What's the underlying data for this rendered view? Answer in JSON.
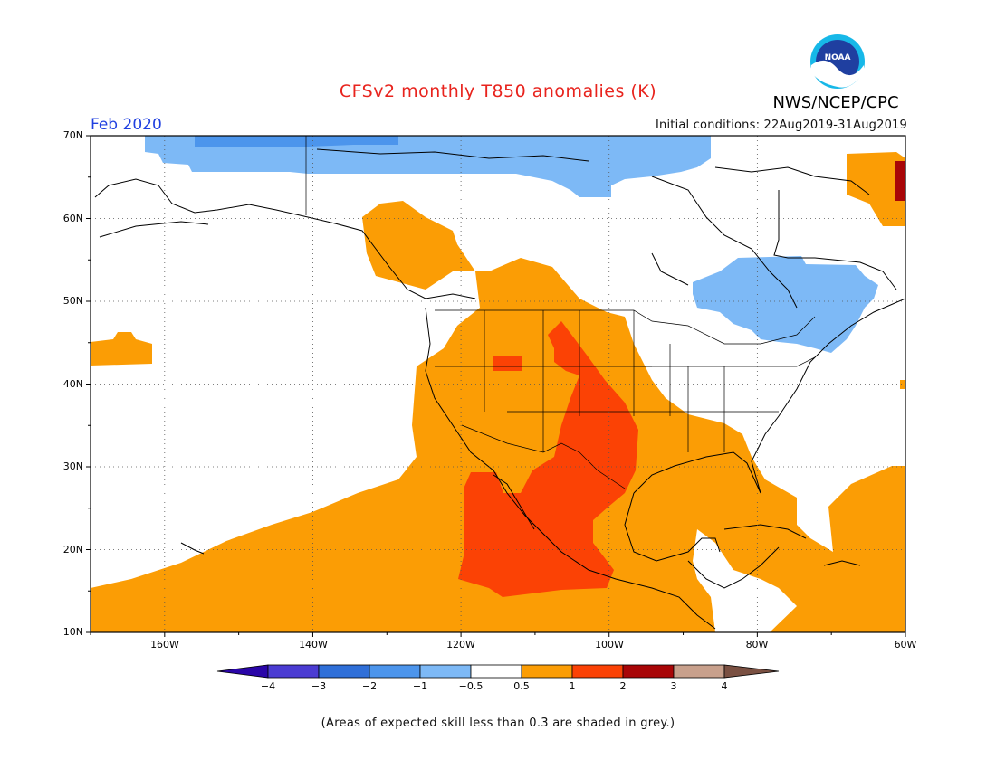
{
  "header": {
    "title": "CFSv2 monthly T850 anomalies (K)",
    "agency": "NWS/NCEP/CPC",
    "logo_text": "NOAA",
    "valid_month": "Feb 2020",
    "initial_conditions": "Initial conditions: 22Aug2019-31Aug2019"
  },
  "map": {
    "lat_labels": [
      "70N",
      "60N",
      "50N",
      "40N",
      "30N",
      "20N",
      "10N"
    ],
    "lon_labels": [
      "160W",
      "140W",
      "120W",
      "100W",
      "80W",
      "60W"
    ],
    "extent": {
      "lon_min": -170,
      "lon_max": -60,
      "lat_min": 10,
      "lat_max": 70
    },
    "grid_lines": "dotted",
    "regions": [
      {
        "name": "arctic-cold",
        "category": "-2 to -1"
      },
      {
        "name": "arctic-cool",
        "category": "-1 to -0.5"
      },
      {
        "name": "great-lakes-cool",
        "category": "-1 to -0.5"
      },
      {
        "name": "west-warm",
        "category": "0.5 to 1"
      },
      {
        "name": "mexico-plains-hot",
        "category": "1 to 2"
      },
      {
        "name": "north-atlantic-hot",
        "category": "2 to 3"
      }
    ]
  },
  "colorbar": {
    "ticks": [
      "−4",
      "−3",
      "−2",
      "−1",
      "−0.5",
      "0.5",
      "1",
      "2",
      "3",
      "4"
    ],
    "colors": [
      "#2a05a8",
      "#4b3cd2",
      "#2f6fd8",
      "#4c95ec",
      "#7db9f6",
      "#ffffff",
      "#fb9d05",
      "#fb4205",
      "#a80507",
      "#c8a08c",
      "#7a5042"
    ]
  },
  "footer": {
    "note": "(Areas of expected skill less than 0.3 are shaded in grey.)"
  }
}
